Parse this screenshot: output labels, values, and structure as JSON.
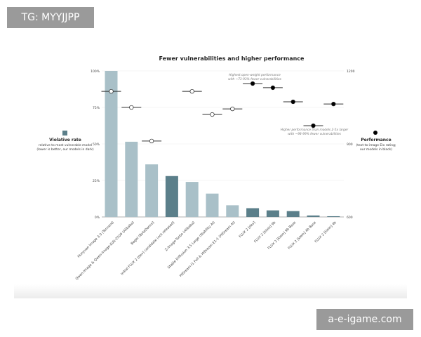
{
  "watermarks": {
    "top_left": "TG: MYYJJPP",
    "bottom_right": "a-e-igame.com"
  },
  "chart_data": {
    "type": "bar",
    "title": "Fewer vulnerabilities and higher performance",
    "categories": [
      "Hunyuan Image 3.0 (Tencent)",
      "Qwen-Image & Qwen-Image-Edit-2509 (Alibaba)",
      "Bagel (ByteDance)",
      "Initial FLUX 2 [dev] candidate (not released)",
      "Z-Image-Turbo (Alibaba)",
      "Stable Diffusion 3.5 Large (Stability AI)",
      "HiDream-I1 Full & HiDream E1-1 (HiDream AI)",
      "FLUX 2 [dev]",
      "FLUX 2 [klein] 9b",
      "FLUX 2 [klein] 9b Base",
      "FLUX 2 [klein] 4b Base",
      "FLUX 2 [klein] 4b"
    ],
    "ours": [
      false,
      false,
      false,
      true,
      false,
      false,
      false,
      true,
      true,
      true,
      true,
      true
    ],
    "series": [
      {
        "name": "Violative rate",
        "axis": "left",
        "type": "bar",
        "values": [
          100,
          51.5,
          36,
          28,
          24,
          16,
          8,
          6,
          4.5,
          4,
          1,
          0.5
        ]
      },
      {
        "name": "Performance",
        "axis": "right",
        "type": "point",
        "values": [
          1116,
          1050,
          912,
          null,
          1116,
          1021,
          1044,
          1148,
          1131,
          1073,
          975,
          1064
        ]
      }
    ],
    "left_axis": {
      "title": "Violative rate",
      "subtitle": [
        "relative to most vulnerable model",
        "(lower is better, our models in dark)"
      ],
      "ylim": [
        0,
        100
      ],
      "ticks": [
        "0%",
        "25%",
        "50%",
        "75%",
        "100%"
      ]
    },
    "right_axis": {
      "title": "Performance",
      "subtitle": [
        "(text-to-image Elo rating;",
        "our models in black)"
      ],
      "ylim": [
        600,
        1200
      ],
      "ticks": [
        "600",
        "900",
        "1200"
      ]
    },
    "annotations": [
      {
        "text": [
          "Highest open-weight performance",
          "with ~73-93% fewer vulnerabilities"
        ]
      },
      {
        "text": [
          "Higher performance than models 2-5x larger",
          "with ~98-99% fewer vulnerabilities"
        ]
      }
    ],
    "grid": true,
    "colors": {
      "bar_other": "#a9c0c8",
      "bar_ours": "#5b7f8a",
      "point_ours": "#000000",
      "point_other": "#ffffff",
      "errorbar": "#333333"
    }
  }
}
